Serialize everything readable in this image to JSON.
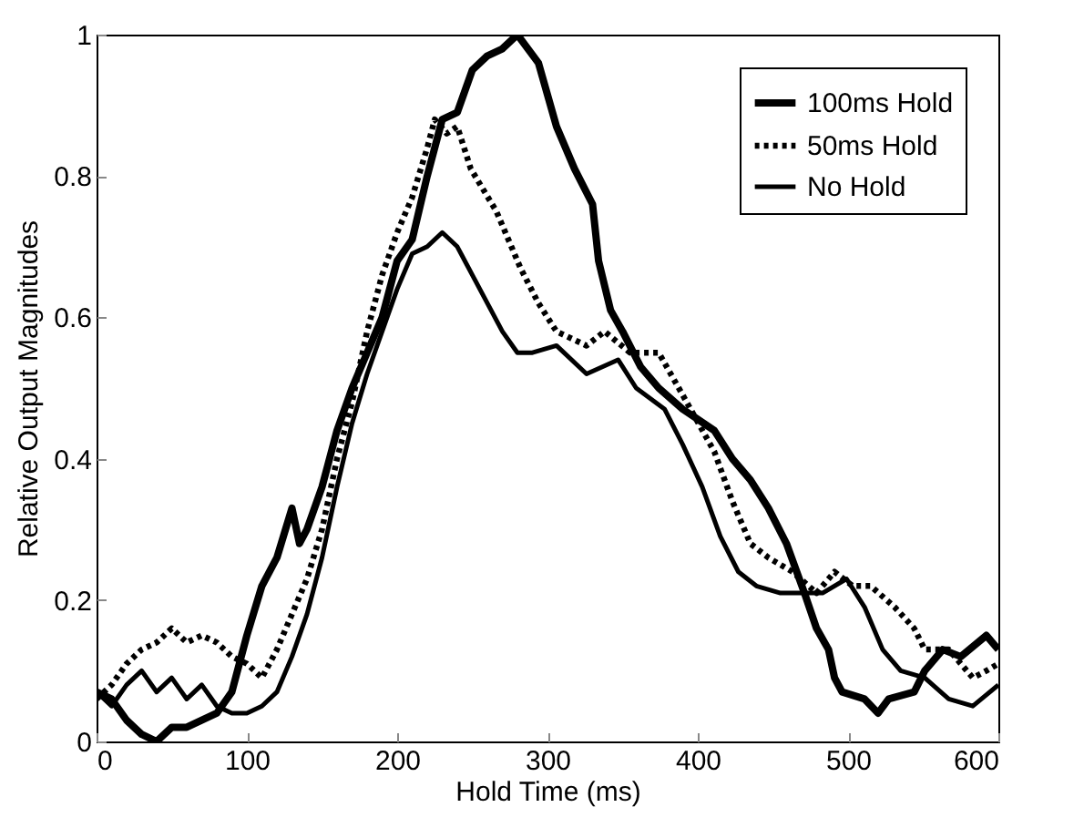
{
  "chart_data": {
    "type": "line",
    "xlabel": "Hold Time (ms)",
    "ylabel": "Relative Output Magnitudes",
    "xlim": [
      0,
      600
    ],
    "xticks": [
      0,
      100,
      200,
      300,
      400,
      500,
      600
    ],
    "ylim": [
      0,
      1
    ],
    "yticks": [
      0,
      0.2,
      0.4,
      0.6,
      0.8,
      1
    ],
    "legend": "top right",
    "grid": false,
    "series": [
      {
        "name": "100ms Hold",
        "color": "#000000",
        "line_style": "solid",
        "x": [
          0,
          10,
          20,
          30,
          40,
          50,
          60,
          70,
          80,
          90,
          100,
          110,
          120,
          130,
          135,
          140,
          150,
          160,
          170,
          180,
          190,
          200,
          210,
          220,
          230,
          240,
          250,
          260,
          270,
          280,
          294,
          306,
          318,
          330,
          334,
          342,
          350,
          362,
          374,
          390,
          411,
          423,
          435,
          447,
          459,
          471,
          479,
          487,
          491,
          496,
          511,
          520,
          527,
          544,
          551,
          563,
          575,
          592,
          600
        ],
        "values": [
          0.07,
          0.06,
          0.03,
          0.01,
          0.0,
          0.02,
          0.02,
          0.03,
          0.04,
          0.07,
          0.15,
          0.22,
          0.26,
          0.33,
          0.28,
          0.3,
          0.36,
          0.44,
          0.5,
          0.55,
          0.6,
          0.68,
          0.71,
          0.8,
          0.88,
          0.89,
          0.95,
          0.97,
          0.98,
          1.0,
          0.96,
          0.87,
          0.81,
          0.76,
          0.68,
          0.61,
          0.58,
          0.53,
          0.5,
          0.47,
          0.44,
          0.4,
          0.37,
          0.33,
          0.28,
          0.21,
          0.16,
          0.13,
          0.09,
          0.07,
          0.06,
          0.04,
          0.06,
          0.07,
          0.1,
          0.13,
          0.12,
          0.15,
          0.13
        ]
      },
      {
        "name": "50ms Hold",
        "color": "#000000",
        "line_style": "dotted",
        "x": [
          0,
          10,
          20,
          30,
          40,
          50,
          60,
          70,
          80,
          90,
          100,
          110,
          120,
          130,
          140,
          150,
          160,
          170,
          180,
          190,
          200,
          210,
          220,
          225,
          233,
          240,
          249,
          266,
          282,
          294,
          306,
          326,
          338,
          355,
          374,
          390,
          411,
          423,
          435,
          447,
          463,
          479,
          491,
          503,
          515,
          531,
          544,
          551,
          567,
          583,
          592,
          600
        ],
        "values": [
          0.06,
          0.08,
          0.11,
          0.13,
          0.14,
          0.16,
          0.14,
          0.15,
          0.14,
          0.12,
          0.11,
          0.09,
          0.13,
          0.18,
          0.23,
          0.3,
          0.4,
          0.48,
          0.58,
          0.66,
          0.72,
          0.77,
          0.84,
          0.88,
          0.86,
          0.87,
          0.81,
          0.75,
          0.67,
          0.62,
          0.58,
          0.56,
          0.58,
          0.55,
          0.55,
          0.49,
          0.41,
          0.34,
          0.28,
          0.26,
          0.24,
          0.21,
          0.24,
          0.22,
          0.22,
          0.19,
          0.16,
          0.13,
          0.13,
          0.09,
          0.1,
          0.11
        ]
      },
      {
        "name": "No Hold",
        "color": "#000000",
        "line_style": "solid",
        "x": [
          0,
          10,
          20,
          30,
          40,
          50,
          60,
          70,
          80,
          90,
          100,
          110,
          120,
          130,
          140,
          150,
          160,
          170,
          180,
          190,
          200,
          210,
          220,
          230,
          240,
          250,
          260,
          270,
          280,
          290,
          306,
          326,
          347,
          359,
          378,
          390,
          403,
          415,
          427,
          439,
          455,
          471,
          483,
          499,
          511,
          523,
          535,
          551,
          567,
          583,
          600
        ],
        "values": [
          0.07,
          0.05,
          0.08,
          0.1,
          0.07,
          0.09,
          0.06,
          0.08,
          0.05,
          0.04,
          0.04,
          0.05,
          0.07,
          0.12,
          0.18,
          0.26,
          0.36,
          0.45,
          0.52,
          0.58,
          0.64,
          0.69,
          0.7,
          0.72,
          0.7,
          0.66,
          0.62,
          0.58,
          0.55,
          0.55,
          0.56,
          0.52,
          0.54,
          0.5,
          0.47,
          0.42,
          0.36,
          0.29,
          0.24,
          0.22,
          0.21,
          0.21,
          0.21,
          0.23,
          0.19,
          0.13,
          0.1,
          0.09,
          0.06,
          0.05,
          0.08
        ]
      }
    ]
  }
}
